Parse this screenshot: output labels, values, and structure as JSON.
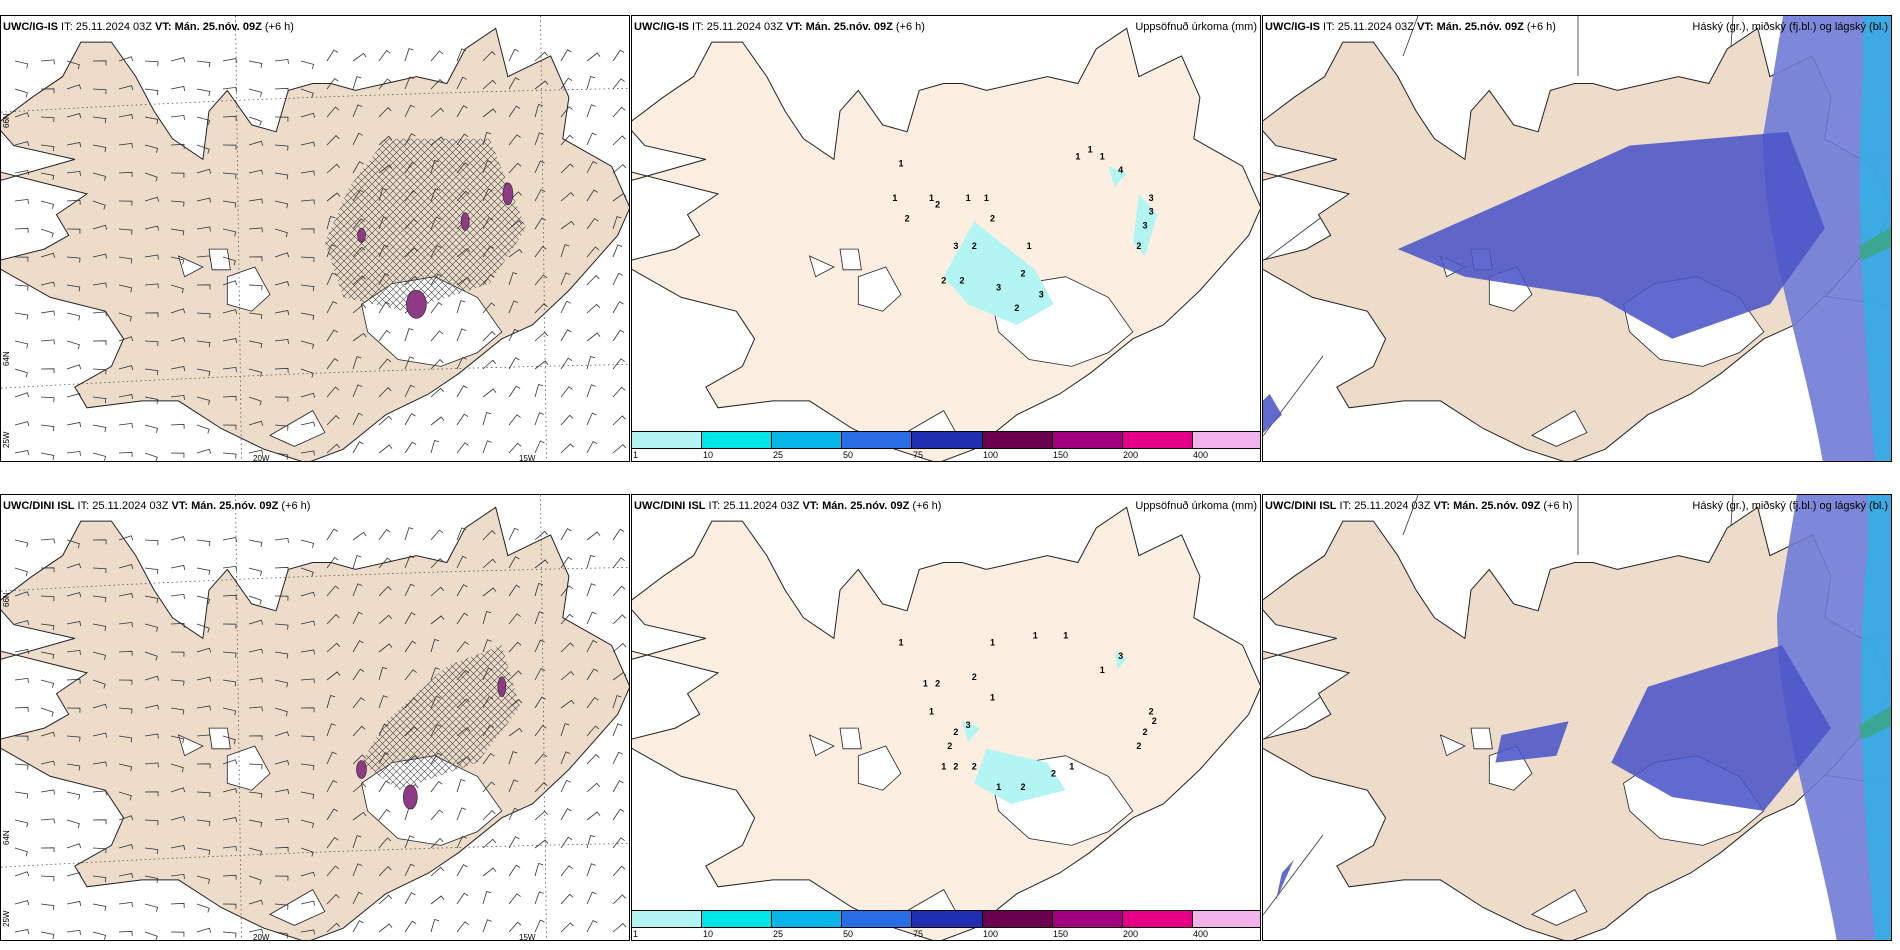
{
  "rows": [
    {
      "model_bold": "UWC/IG-IS",
      "it_text": " IT: 25.11.2024 03Z ",
      "vt_bold": "VT: Mán. 25.nóv. 09Z",
      "lead": " (+6 h)"
    },
    {
      "model_bold": "UWC/DINI ISL",
      "it_text": " IT: 25.11.2024 03Z ",
      "vt_bold": "VT: Mán. 25.nóv. 09Z",
      "lead": " (+6 h)"
    }
  ],
  "panel_titles": {
    "precip": "Uppsöfnuð úrkoma (mm)",
    "clouds": "Háský (gr.), miðský (fj.bl.) og lágský (bl.)"
  },
  "grid_labels": {
    "lat66": "66N",
    "lat64": "64N",
    "lon25": "25W",
    "lon20": "20W",
    "lon15": "15W"
  },
  "colorbar": {
    "labels": [
      "1",
      "10",
      "25",
      "50",
      "75",
      "100",
      "150",
      "200",
      "400"
    ],
    "colors": [
      "#b3f5f2",
      "#00e5e8",
      "#08b6ea",
      "#2a6ee6",
      "#1f2fb0",
      "#6b004e",
      "#a3007f",
      "#e60087",
      "#f2b3ec"
    ]
  },
  "colors": {
    "land": "#ecdcc9",
    "land_precip": "#fcefe1",
    "ice": "#ffffff",
    "precip_light": "#b3f5f2",
    "snow_heavy": "#8e3a84",
    "high_cloud": "#4b55c7",
    "mid_cloud": "#6f7bd6",
    "low_cloud": "#2db3e6",
    "sea_green": "#3aa67f"
  },
  "precip_values": {
    "igis": [
      {
        "v": "1",
        "lon": -19.5,
        "lat": 65.55
      },
      {
        "v": "1",
        "lon": -19.6,
        "lat": 65.3
      },
      {
        "v": "2",
        "lon": -19.4,
        "lat": 65.15
      },
      {
        "v": "1",
        "lon": -19.0,
        "lat": 65.3
      },
      {
        "v": "2",
        "lon": -18.9,
        "lat": 65.25
      },
      {
        "v": "1",
        "lon": -18.4,
        "lat": 65.3
      },
      {
        "v": "1",
        "lon": -18.1,
        "lat": 65.3
      },
      {
        "v": "2",
        "lon": -18.0,
        "lat": 65.15
      },
      {
        "v": "3",
        "lon": -18.6,
        "lat": 64.95
      },
      {
        "v": "2",
        "lon": -18.3,
        "lat": 64.95
      },
      {
        "v": "1",
        "lon": -17.4,
        "lat": 64.95
      },
      {
        "v": "2",
        "lon": -18.8,
        "lat": 64.7
      },
      {
        "v": "2",
        "lon": -18.5,
        "lat": 64.7
      },
      {
        "v": "3",
        "lon": -17.9,
        "lat": 64.65
      },
      {
        "v": "2",
        "lon": -17.5,
        "lat": 64.75
      },
      {
        "v": "3",
        "lon": -17.2,
        "lat": 64.6
      },
      {
        "v": "2",
        "lon": -17.6,
        "lat": 64.5
      },
      {
        "v": "1",
        "lon": -16.6,
        "lat": 65.6
      },
      {
        "v": "1",
        "lon": -16.4,
        "lat": 65.65
      },
      {
        "v": "1",
        "lon": -16.2,
        "lat": 65.6
      },
      {
        "v": "4",
        "lon": -15.9,
        "lat": 65.5
      },
      {
        "v": "3",
        "lon": -15.4,
        "lat": 65.3
      },
      {
        "v": "3",
        "lon": -15.4,
        "lat": 65.2
      },
      {
        "v": "3",
        "lon": -15.5,
        "lat": 65.1
      },
      {
        "v": "2",
        "lon": -15.6,
        "lat": 64.95
      }
    ],
    "dini": [
      {
        "v": "1",
        "lon": -19.5,
        "lat": 65.55
      },
      {
        "v": "1",
        "lon": -18.0,
        "lat": 65.55
      },
      {
        "v": "1",
        "lon": -17.3,
        "lat": 65.6
      },
      {
        "v": "1",
        "lon": -16.8,
        "lat": 65.6
      },
      {
        "v": "3",
        "lon": -15.9,
        "lat": 65.45
      },
      {
        "v": "1",
        "lon": -16.2,
        "lat": 65.35
      },
      {
        "v": "1",
        "lon": -19.1,
        "lat": 65.25
      },
      {
        "v": "2",
        "lon": -18.9,
        "lat": 65.25
      },
      {
        "v": "2",
        "lon": -18.3,
        "lat": 65.3
      },
      {
        "v": "1",
        "lon": -18.0,
        "lat": 65.15
      },
      {
        "v": "1",
        "lon": -19.0,
        "lat": 65.05
      },
      {
        "v": "3",
        "lon": -18.4,
        "lat": 64.95
      },
      {
        "v": "2",
        "lon": -18.6,
        "lat": 64.9
      },
      {
        "v": "2",
        "lon": -18.7,
        "lat": 64.8
      },
      {
        "v": "1",
        "lon": -18.8,
        "lat": 64.65
      },
      {
        "v": "2",
        "lon": -18.6,
        "lat": 64.65
      },
      {
        "v": "2",
        "lon": -18.3,
        "lat": 64.65
      },
      {
        "v": "1",
        "lon": -17.9,
        "lat": 64.5
      },
      {
        "v": "2",
        "lon": -17.5,
        "lat": 64.5
      },
      {
        "v": "2",
        "lon": -17.0,
        "lat": 64.6
      },
      {
        "v": "1",
        "lon": -16.7,
        "lat": 64.65
      },
      {
        "v": "2",
        "lon": -15.4,
        "lat": 65.05
      },
      {
        "v": "2",
        "lon": -15.35,
        "lat": 64.98
      },
      {
        "v": "2",
        "lon": -15.5,
        "lat": 64.9
      },
      {
        "v": "2",
        "lon": -15.6,
        "lat": 64.8
      }
    ]
  }
}
